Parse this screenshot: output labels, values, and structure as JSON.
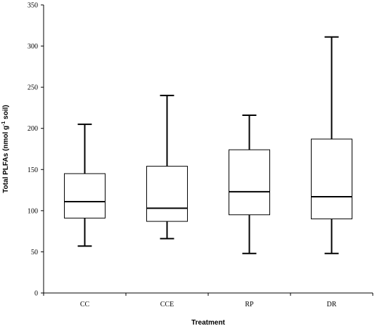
{
  "chart_data": {
    "type": "box",
    "title": "",
    "xlabel": "Treatment",
    "ylabel_parts": {
      "before": "Total PLFAs (nmol g",
      "superscript": "-1",
      "after": " soil)"
    },
    "ylim": [
      0,
      350
    ],
    "yticks": [
      0,
      50,
      100,
      150,
      200,
      250,
      300,
      350
    ],
    "categories": [
      "CC",
      "CCE",
      "RP",
      "DR"
    ],
    "boxes": [
      {
        "category": "CC",
        "min": 57,
        "q1": 91,
        "median": 111,
        "q3": 145,
        "max": 205
      },
      {
        "category": "CCE",
        "min": 66,
        "q1": 87,
        "median": 103,
        "q3": 154,
        "max": 240
      },
      {
        "category": "RP",
        "min": 48,
        "q1": 95,
        "median": 123,
        "q3": 174,
        "max": 216
      },
      {
        "category": "DR",
        "min": 48,
        "q1": 90,
        "median": 117,
        "q3": 187,
        "max": 311
      }
    ],
    "grid": false,
    "legend": "none"
  }
}
